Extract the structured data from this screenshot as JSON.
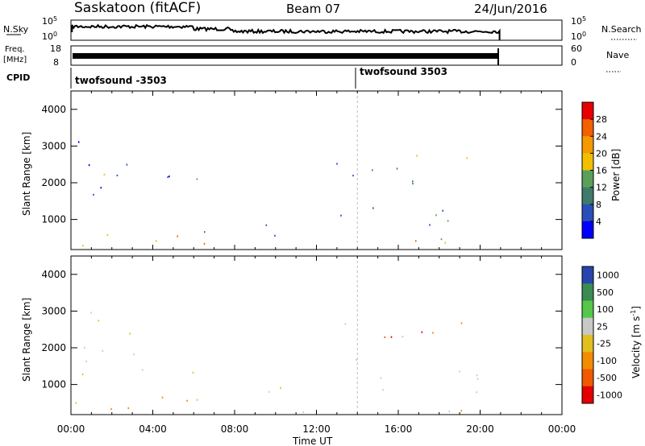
{
  "header": {
    "station": "Saskatoon (fitACF)",
    "beam": "Beam 07",
    "date": "24/Jun/2016"
  },
  "top_panels": {
    "nsky_label": "N.Sky",
    "nsky_ticks": [
      "10^5",
      "10^0"
    ],
    "nsearch_label": "N.Search",
    "nsearch_ticks": [
      "10^5",
      "10^0"
    ],
    "freq_label": "Freq.",
    "freq_unit": "[MHz]",
    "freq_ticks": [
      "18",
      "8"
    ],
    "nave_label": "Nave",
    "nave_ticks": [
      "60",
      "0"
    ],
    "cpid_label": "CPID",
    "cpid_segments": [
      {
        "name": "twofsound -3503",
        "start_hour": 0
      },
      {
        "name": "twofsound 3503",
        "start_hour": 14
      }
    ]
  },
  "colors": {
    "power_scale": [
      "#0000ff",
      "#2a4fb8",
      "#3f7a6a",
      "#5aa05a",
      "#f0c000",
      "#f49a00",
      "#f26000",
      "#e60000"
    ],
    "velocity_scale": [
      "#2845ad",
      "#3b8b52",
      "#55c84a",
      "#c8c8c8",
      "#e0c020",
      "#f28c00",
      "#ef5a00",
      "#e40000"
    ]
  },
  "chart_data": [
    {
      "type": "heatmap",
      "panel": "power",
      "ylabel": "Slant Range [km]",
      "xlabel": "Time UT",
      "xlim": [
        "00:00",
        "24:00"
      ],
      "ylim": [
        180,
        4500
      ],
      "x_ticks": [
        "00:00",
        "04:00",
        "08:00",
        "12:00",
        "16:00",
        "20:00",
        "00:00"
      ],
      "y_ticks": [
        "1000",
        "2000",
        "3000",
        "4000"
      ],
      "colorbar": {
        "label": "Power [dB]",
        "ticks": [
          "4",
          "8",
          "12",
          "16",
          "20",
          "24",
          "28"
        ],
        "range": [
          0,
          30
        ]
      },
      "data_end_hour": 21
    },
    {
      "type": "heatmap",
      "panel": "velocity",
      "ylabel": "Slant Range [km]",
      "xlabel": "Time UT",
      "xlim": [
        "00:00",
        "24:00"
      ],
      "ylim": [
        180,
        4500
      ],
      "x_ticks": [
        "00:00",
        "04:00",
        "08:00",
        "12:00",
        "16:00",
        "20:00",
        "00:00"
      ],
      "y_ticks": [
        "1000",
        "2000",
        "3000",
        "4000"
      ],
      "colorbar": {
        "label": "Velocity [m s^-1]",
        "ticks": [
          "1000",
          "500",
          "100",
          "25",
          "-25",
          "-100",
          "-500",
          "-1000"
        ]
      },
      "data_end_hour": 21
    }
  ],
  "axis": {
    "x_title": "Time UT",
    "x_ticks": [
      "00:00",
      "04:00",
      "08:00",
      "12:00",
      "16:00",
      "20:00",
      "00:00"
    ]
  }
}
